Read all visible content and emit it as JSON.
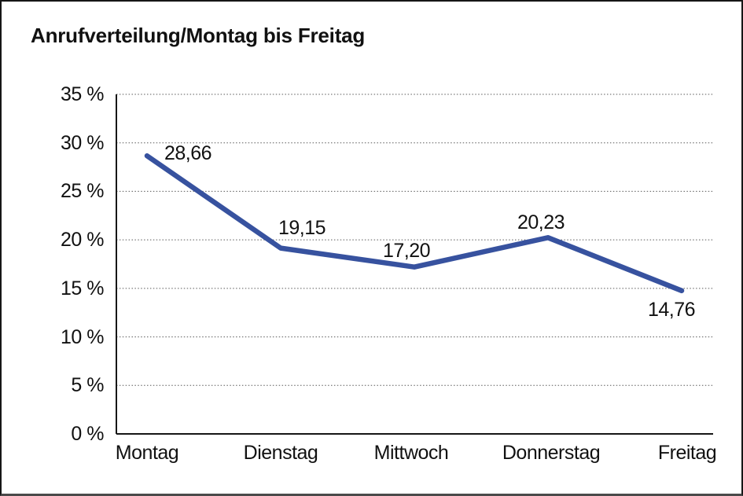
{
  "chart_data": {
    "type": "line",
    "title": "Anrufverteilung/Montag bis Freitag",
    "categories": [
      "Montag",
      "Dienstag",
      "Mittwoch",
      "Donnerstag",
      "Freitag"
    ],
    "values": [
      28.66,
      19.15,
      17.2,
      20.23,
      14.76
    ],
    "value_labels": [
      "28,66",
      "19,15",
      "17,20",
      "20,23",
      "14,76"
    ],
    "xlabel": "",
    "ylabel": "",
    "ylim": [
      0,
      35
    ],
    "ytick_step": 5,
    "ytick_labels": [
      "0 %",
      "5 %",
      "10 %",
      "15 %",
      "20 %",
      "25 %",
      "30 %",
      "35 %"
    ],
    "grid": "horizontal-dotted",
    "legend": null,
    "line_color": "#37529F"
  },
  "colors": {
    "line": "#37529F",
    "axis": "#161616",
    "grid": "#5a5a5a",
    "text": "#111111",
    "frame": "#161616",
    "background": "#ffffff"
  }
}
